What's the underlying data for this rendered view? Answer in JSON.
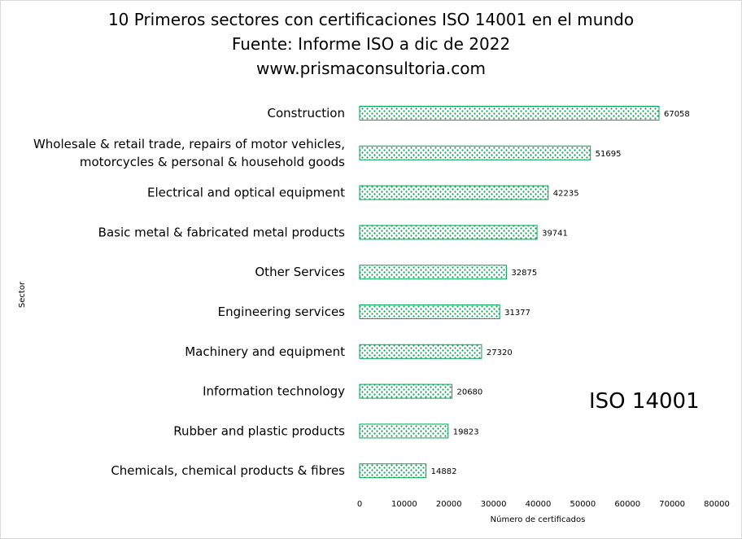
{
  "chart_data": {
    "type": "bar",
    "orientation": "horizontal",
    "title": "10 Primeros sectores con certificaciones ISO 14001  en el mundo",
    "subtitle": "Fuente: Informe ISO a dic de 2022",
    "source": "www.prismaconsultoria.com",
    "categories": [
      [
        "Construction"
      ],
      [
        "Wholesale & retail trade, repairs of motor vehicles,",
        "motorcycles & personal & household goods"
      ],
      [
        "Electrical and optical equipment"
      ],
      [
        "Basic metal & fabricated metal products"
      ],
      [
        "Other Services"
      ],
      [
        "Engineering services"
      ],
      [
        "Machinery and equipment"
      ],
      [
        "Information technology"
      ],
      [
        "Rubber and plastic products"
      ],
      [
        "Chemicals, chemical products & fibres"
      ]
    ],
    "values": [
      67058,
      51695,
      42235,
      39741,
      32875,
      31377,
      27320,
      20680,
      19823,
      14882
    ],
    "xlabel": "Número de certificados",
    "ylabel": "Sector",
    "xlim": [
      0,
      80000
    ],
    "xticks": [
      0,
      10000,
      20000,
      30000,
      40000,
      50000,
      60000,
      70000,
      80000
    ],
    "annotation": "ISO 14001",
    "bar_color": "#00a651",
    "grid": false,
    "legend": "none"
  }
}
